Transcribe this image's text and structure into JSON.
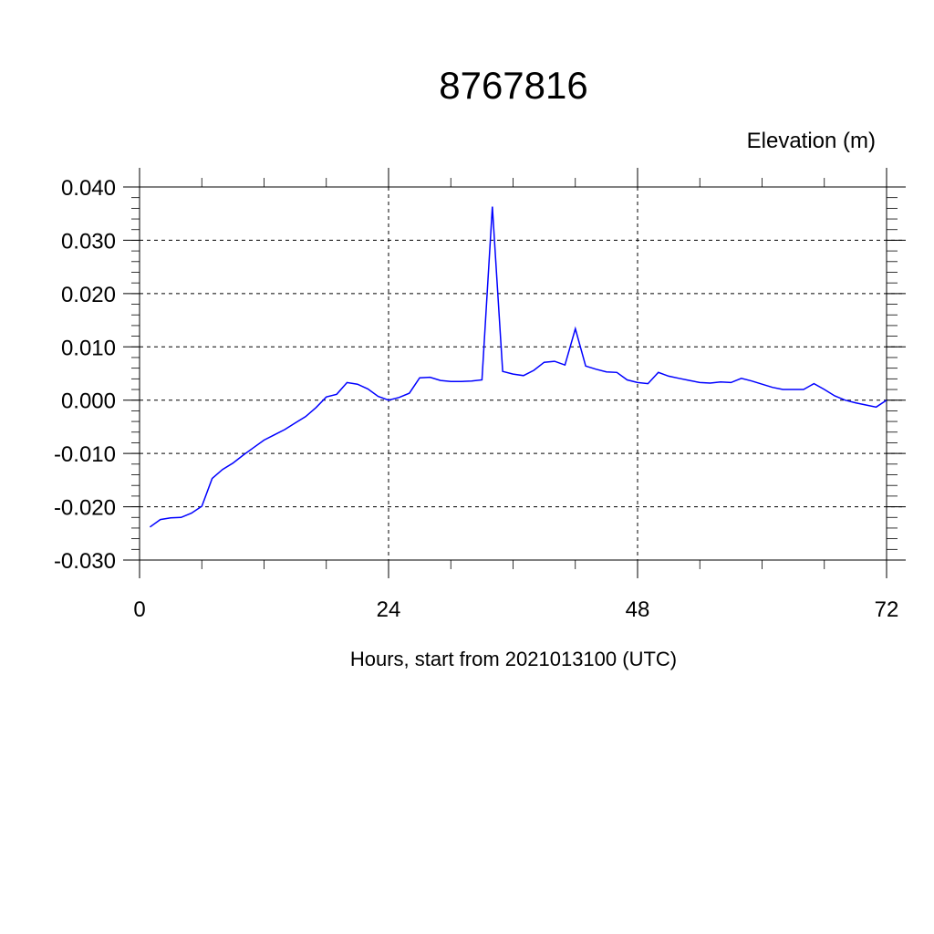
{
  "chart_data": {
    "type": "line",
    "title": "8767816",
    "ylabel": "Elevation (m)",
    "xlabel": "Hours, start from 2021013100 (UTC)",
    "xlim": [
      0,
      72
    ],
    "ylim": [
      -0.03,
      0.04
    ],
    "xticks": [
      0,
      24,
      48,
      72
    ],
    "xtick_labels": [
      "0",
      "24",
      "48",
      "72"
    ],
    "yticks": [
      0.04,
      0.03,
      0.02,
      0.01,
      0.0,
      -0.01,
      -0.02,
      -0.03
    ],
    "ytick_labels": [
      "0.040",
      "0.030",
      "0.020",
      "0.010",
      "0.000",
      "-0.010",
      "-0.020",
      "-0.030"
    ],
    "grid": true,
    "series": [
      {
        "color": "#0000ff",
        "x": [
          1,
          2,
          3,
          4,
          5,
          6,
          7,
          8,
          9,
          10,
          11,
          12,
          13,
          14,
          15,
          16,
          17,
          18,
          19,
          20,
          21,
          22,
          23,
          24,
          25,
          26,
          27,
          28,
          29,
          30,
          31,
          32,
          33,
          34,
          35,
          36,
          37,
          38,
          39,
          40,
          41,
          42,
          43,
          44,
          45,
          46,
          47,
          48,
          49,
          50,
          51,
          52,
          53,
          54,
          55,
          56,
          57,
          58,
          59,
          60,
          61,
          62,
          63,
          64,
          65,
          66,
          67,
          68,
          69,
          70,
          71,
          72
        ],
        "y": [
          -0.0238,
          -0.0224,
          -0.0221,
          -0.022,
          -0.0212,
          -0.0199,
          -0.0147,
          -0.013,
          -0.0118,
          -0.0103,
          -0.0089,
          -0.0075,
          -0.0065,
          -0.0055,
          -0.0043,
          -0.0031,
          -0.0014,
          0.0006,
          0.0011,
          0.0033,
          0.003,
          0.0021,
          0.0007,
          0.0,
          0.0005,
          0.0013,
          0.0042,
          0.0043,
          0.0037,
          0.0035,
          0.0035,
          0.0036,
          0.0038,
          0.0363,
          0.0054,
          0.0049,
          0.0046,
          0.0056,
          0.0071,
          0.0073,
          0.0066,
          0.0134,
          0.0064,
          0.0058,
          0.0053,
          0.0052,
          0.0038,
          0.0033,
          0.0031,
          0.0052,
          0.0045,
          0.0041,
          0.0037,
          0.0033,
          0.0032,
          0.0034,
          0.0033,
          0.0041,
          0.0036,
          0.003,
          0.0024,
          0.002,
          0.002,
          0.002,
          0.0031,
          0.002,
          0.0008,
          0.0,
          -0.0005,
          -0.0009,
          -0.0013,
          0.0
        ]
      }
    ]
  }
}
